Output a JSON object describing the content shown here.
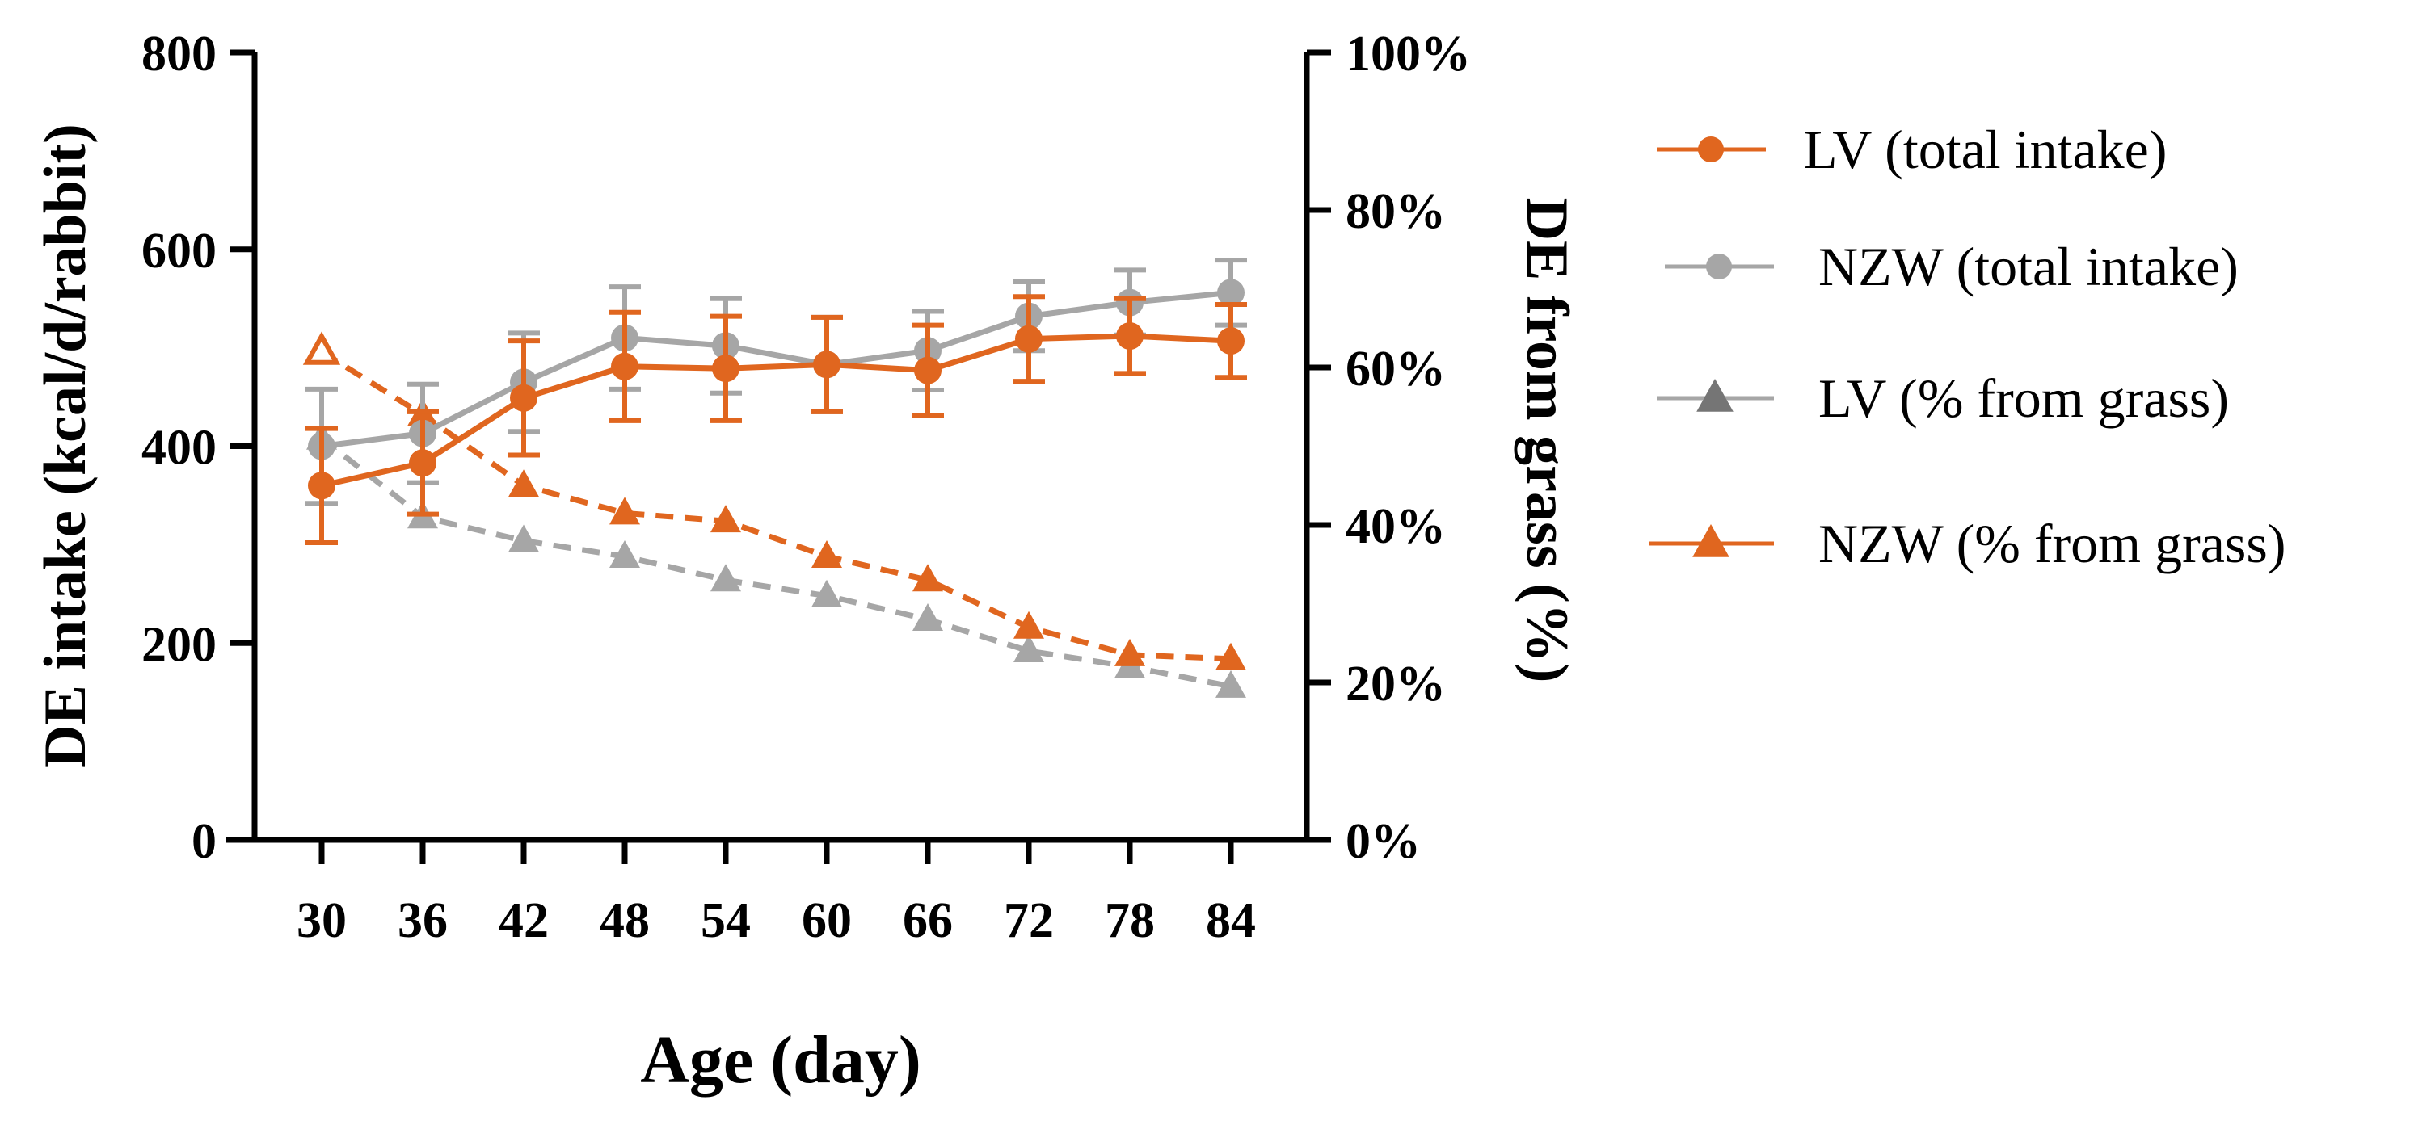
{
  "chart_data": {
    "type": "line",
    "x": [
      30,
      36,
      42,
      48,
      54,
      60,
      66,
      72,
      78,
      84
    ],
    "xlabel": "Age (day)",
    "ylabel": "DE intake (kcal/d/rabbit)",
    "y2label": "DE from grass (%)",
    "ylim": [
      0,
      800
    ],
    "y2lim": [
      0,
      100
    ],
    "yticks": [
      0,
      200,
      400,
      600,
      800
    ],
    "yticklabels": [
      "0",
      "200",
      "400",
      "600",
      "800"
    ],
    "y2ticks": [
      0,
      20,
      40,
      60,
      80,
      100
    ],
    "y2ticklabels": [
      "0%",
      "20%",
      "40%",
      "60%",
      "80%",
      "100%"
    ],
    "xticklabels": [
      "30",
      "36",
      "42",
      "48",
      "54",
      "60",
      "66",
      "72",
      "78",
      "84"
    ],
    "legend_position": "right",
    "colors": {
      "orange": "#e0661f",
      "gray": "#a6a6a6"
    },
    "series": [
      {
        "name": "LV (total intake)",
        "axis": "left",
        "color": "#e0661f",
        "marker": "circle",
        "dashed": false,
        "values": [
          360,
          383,
          449,
          481,
          479,
          483,
          477,
          509,
          512,
          507
        ],
        "errors": [
          58,
          52,
          58,
          55,
          53,
          48,
          46,
          43,
          38,
          37
        ]
      },
      {
        "name": "NZW (total intake)",
        "axis": "left",
        "color": "#a6a6a6",
        "marker": "circle",
        "dashed": false,
        "values": [
          400,
          413,
          465,
          510,
          502,
          483,
          497,
          532,
          546,
          556
        ],
        "errors": [
          58,
          50,
          50,
          52,
          48,
          48,
          40,
          35,
          33,
          33
        ]
      },
      {
        "name": "LV (% from grass)",
        "axis": "right",
        "color": "#a6a6a6",
        "marker": "triangle",
        "dashed": true,
        "values": [
          51,
          41,
          38,
          36,
          33,
          31,
          28,
          24,
          22,
          19.5
        ],
        "errors": [
          0,
          0,
          0,
          0,
          0,
          0,
          0,
          0,
          0,
          0
        ]
      },
      {
        "name": "NZW (% from grass)",
        "axis": "right",
        "color": "#e0661f",
        "marker": "triangle",
        "dashed": true,
        "values": [
          62,
          54,
          45,
          41.5,
          40.5,
          36,
          33,
          27,
          23.5,
          23
        ],
        "errors": [
          0,
          0,
          0,
          0,
          0,
          0,
          0,
          0,
          0,
          0
        ]
      }
    ]
  }
}
